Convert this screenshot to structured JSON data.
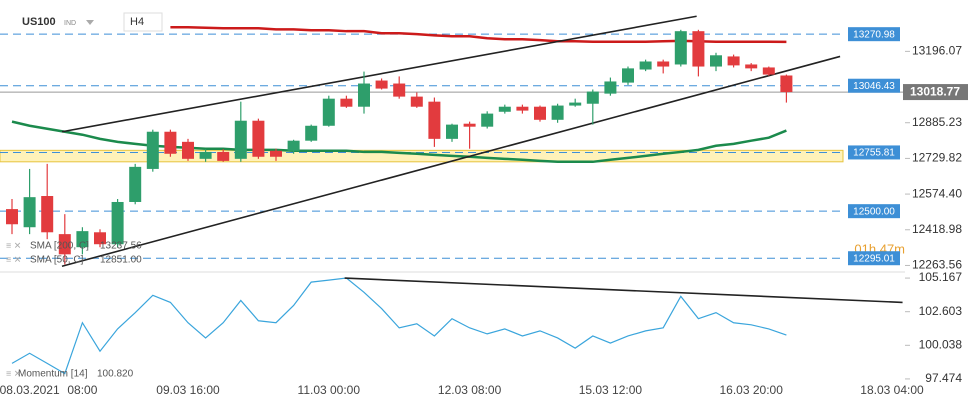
{
  "chart_data": {
    "type": "candlestick",
    "symbol": "US100",
    "market": "IND",
    "timeframe": "H4",
    "categories": [
      null,
      "08.03.2021",
      null,
      null,
      "08:00",
      null,
      null,
      null,
      null,
      null,
      "09.03 16:00",
      null,
      null,
      null,
      null,
      null,
      null,
      null,
      "11.03 00:00",
      null,
      null,
      null,
      null,
      null,
      null,
      null,
      "12.03 08:00",
      null,
      null,
      null,
      null,
      null,
      null,
      null,
      "15.03 12:00",
      null,
      null,
      null,
      null,
      null,
      null,
      null,
      "16.03 20:00",
      null,
      null,
      null,
      null,
      null,
      null,
      null,
      "18.03 04:00"
    ],
    "open": [
      12509,
      12430,
      12566,
      12400,
      12343,
      12408,
      12356,
      12540,
      12684,
      12846,
      12802,
      12728,
      12758,
      12728,
      12894,
      12763,
      12763,
      12807,
      12872,
      12990,
      12955,
      13069,
      13056,
      12999,
      12977,
      12815,
      12881,
      12868,
      12933,
      12955,
      12955,
      12898,
      12960,
      12968,
      13012,
      13060,
      13117,
      13152,
      13139,
      13284,
      13130,
      13174,
      13139,
      13126,
      13091,
      null,
      null,
      null,
      null,
      null,
      null
    ],
    "high": [
      12553,
      12684,
      12706,
      12487,
      12430,
      12421,
      12553,
      12706,
      12855,
      12855,
      12815,
      12770,
      12770,
      12977,
      12903,
      12772,
      12811,
      12877,
      13003,
      13003,
      13108,
      13078,
      13087,
      13017,
      12995,
      12881,
      12890,
      12935,
      12964,
      12964,
      12960,
      12968,
      12990,
      13030,
      13082,
      13130,
      13160,
      13160,
      13290,
      13290,
      13190,
      13182,
      13145,
      13130,
      13095,
      null,
      null,
      null,
      null,
      null,
      null
    ],
    "low": [
      12400,
      12400,
      12378,
      12268,
      12312,
      12343,
      12343,
      12530,
      12672,
      12737,
      12719,
      12715,
      12715,
      12715,
      12728,
      12719,
      12750,
      12802,
      12868,
      12950,
      12925,
      13030,
      12990,
      12950,
      12780,
      12802,
      12772,
      12860,
      12925,
      12925,
      12890,
      12885,
      12955,
      12877,
      13003,
      13050,
      13110,
      13100,
      13130,
      13087,
      13110,
      13126,
      13110,
      13090,
      12973,
      null,
      null,
      null,
      null,
      null,
      null
    ],
    "close": [
      12443,
      12561,
      12408,
      12312,
      12413,
      12356,
      12540,
      12693,
      12846,
      12750,
      12728,
      12758,
      12719,
      12894,
      12737,
      12737,
      12807,
      12872,
      12990,
      12955,
      13056,
      13034,
      12999,
      12955,
      12815,
      12877,
      12868,
      12925,
      12955,
      12938,
      12898,
      12960,
      12973,
      13021,
      13065,
      13122,
      13152,
      13130,
      13284,
      13130,
      13179,
      13135,
      13122,
      13095,
      13018.77,
      null,
      null,
      null,
      null,
      null,
      null
    ],
    "up_color": "#2e9e6b",
    "down_color": "#e23b3e",
    "ylim": [
      12235,
      13385
    ],
    "yticks": [
      13196.07,
      12885.23,
      12729.82,
      {
        "value": 12574.4,
        "label": "12574.40"
      },
      12418.98,
      12263.56
    ],
    "current_price": 13018.77,
    "levels": [
      13270.98,
      13046.43,
      12755.81,
      {
        "value": 12500,
        "label": "12500.00"
      },
      12295.01
    ],
    "level_color": "#3d8fd6",
    "zone": [
      12715,
      12765
    ],
    "countdown": "01h 47m",
    "series": [
      {
        "name": "SMA [200, C]",
        "legend_value": "13237.56",
        "color": "#cc1a1a",
        "values": [
          null,
          null,
          null,
          null,
          null,
          null,
          null,
          null,
          null,
          13301,
          13301,
          13299,
          13297,
          13297,
          13297,
          13292,
          13292,
          13288,
          13288,
          13284,
          13284,
          13275,
          13275,
          13271,
          13266,
          13262,
          13262,
          13253,
          13249,
          13249,
          13245,
          13240,
          13240,
          13238,
          13238,
          13238,
          13238,
          13240,
          13242,
          13240,
          13238,
          13238,
          13238,
          13238,
          13237.56,
          null,
          null,
          null,
          null,
          null,
          null
        ]
      },
      {
        "name": "SMA [50, C]",
        "legend_value": "12851.00",
        "color": "#1b8a4c",
        "values": [
          12890,
          12872,
          12859,
          12846,
          12833,
          12815,
          12802,
          12793,
          12785,
          12780,
          12776,
          12772,
          12772,
          12767,
          12767,
          12767,
          12763,
          12763,
          12763,
          12763,
          12758,
          12758,
          12754,
          12750,
          12745,
          12741,
          12737,
          12732,
          12728,
          12724,
          12719,
          12715,
          12715,
          12715,
          12724,
          12732,
          12741,
          12750,
          12758,
          12767,
          12785,
          12793,
          12807,
          12820,
          12851,
          null,
          null,
          null,
          null,
          null,
          null
        ]
      }
    ],
    "trendlines": [
      {
        "x": [
          2.84,
          38.9
        ],
        "y": [
          12846,
          13349
        ]
      },
      {
        "x": [
          2.84,
          47.05
        ],
        "y": [
          12260,
          13174
        ]
      }
    ],
    "momentum": {
      "name": "Momentum [14]",
      "legend_value": "100.820",
      "color": "#3aa5dc",
      "values": [
        98.66,
        99.43,
        98.66,
        97.88,
        101.76,
        99.59,
        101.29,
        102.53,
        103.85,
        103.31,
        101.76,
        100.6,
        101.76,
        103.46,
        101.91,
        101.76,
        103.08,
        104.86,
        105.01,
        105.17,
        104.08,
        102.84,
        101.37,
        101.68,
        100.75,
        102.07,
        101.37,
        100.91,
        101.29,
        100.75,
        101.14,
        100.6,
        99.82,
        100.75,
        100.21,
        100.75,
        101.14,
        101.37,
        103.77,
        102.07,
        102.53,
        101.76,
        101.6,
        101.29,
        100.82,
        null,
        null,
        null,
        null,
        null,
        null
      ],
      "ylim": [
        97.24,
        105.63
      ],
      "yticks": [
        105.167,
        102.603,
        100.038,
        97.474
      ],
      "trendline": {
        "x": [
          18.9,
          50.6
        ],
        "y": [
          105.167,
          103.31
        ]
      }
    }
  }
}
